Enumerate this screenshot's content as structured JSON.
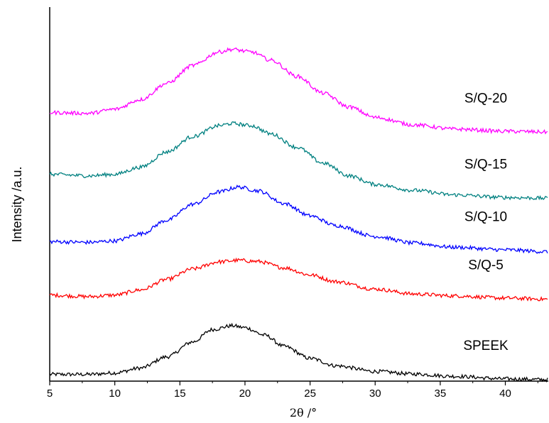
{
  "chart_data": {
    "type": "line",
    "title": "",
    "xlabel": "2θ /°",
    "ylabel": "Intensity /a.u.",
    "xlim": [
      5,
      43.3
    ],
    "x_ticks": [
      5,
      10,
      15,
      20,
      25,
      30,
      35,
      40
    ],
    "x_tick_labels": [
      "5",
      "10",
      "15",
      "20",
      "25",
      "30",
      "35",
      "40"
    ],
    "y_ticks_shown": false,
    "grid": false,
    "legend": "none (series labeled inline above each curve)",
    "series": [
      {
        "name": "SPEEK",
        "color": "#000000",
        "points": [
          [
            5,
            1.8
          ],
          [
            8,
            1.8
          ],
          [
            10,
            2.2
          ],
          [
            12,
            3.5
          ],
          [
            14,
            6.5
          ],
          [
            16,
            10.5
          ],
          [
            17.5,
            13.8
          ],
          [
            19,
            14.8
          ],
          [
            20,
            14.3
          ],
          [
            21.5,
            12.3
          ],
          [
            23,
            9.3
          ],
          [
            25,
            6.1
          ],
          [
            27,
            4.1
          ],
          [
            30,
            2.6
          ],
          [
            33,
            1.9
          ],
          [
            36,
            1.3
          ],
          [
            40,
            0.6
          ],
          [
            43.3,
            0.4
          ]
        ]
      },
      {
        "name": "S/Q-5",
        "color": "#ff0000",
        "points": [
          [
            5,
            23.0
          ],
          [
            8,
            22.6
          ],
          [
            10,
            23.0
          ],
          [
            12,
            24.4
          ],
          [
            14,
            27.2
          ],
          [
            16,
            30.0
          ],
          [
            18,
            31.9
          ],
          [
            19.5,
            32.3
          ],
          [
            21,
            32.0
          ],
          [
            23,
            30.3
          ],
          [
            25,
            28.4
          ],
          [
            27,
            26.6
          ],
          [
            30,
            24.6
          ],
          [
            33,
            23.3
          ],
          [
            36,
            22.8
          ],
          [
            40,
            22.2
          ],
          [
            43.3,
            21.9
          ]
        ]
      },
      {
        "name": "S/Q-10",
        "color": "#0000ff",
        "points": [
          [
            5,
            37.3
          ],
          [
            8,
            37.1
          ],
          [
            10,
            37.5
          ],
          [
            12,
            39.4
          ],
          [
            14,
            43.0
          ],
          [
            16,
            47.3
          ],
          [
            18,
            50.6
          ],
          [
            19.5,
            51.9
          ],
          [
            21,
            50.9
          ],
          [
            23,
            47.5
          ],
          [
            25,
            44.2
          ],
          [
            27,
            41.6
          ],
          [
            30,
            38.7
          ],
          [
            33,
            36.9
          ],
          [
            36,
            35.8
          ],
          [
            40,
            35.1
          ],
          [
            43.3,
            34.6
          ]
        ]
      },
      {
        "name": "S/Q-15",
        "color": "#008080",
        "points": [
          [
            5,
            55.3
          ],
          [
            8,
            54.9
          ],
          [
            10,
            55.3
          ],
          [
            12,
            57.2
          ],
          [
            14,
            61.3
          ],
          [
            16,
            65.4
          ],
          [
            18,
            68.3
          ],
          [
            19,
            68.9
          ],
          [
            20.5,
            68.3
          ],
          [
            22,
            66.1
          ],
          [
            24,
            62.5
          ],
          [
            26,
            58.3
          ],
          [
            28,
            54.9
          ],
          [
            30,
            52.6
          ],
          [
            33,
            51.0
          ],
          [
            36,
            49.8
          ],
          [
            40,
            49.1
          ],
          [
            43.3,
            48.9
          ]
        ]
      },
      {
        "name": "S/Q-20",
        "color": "#ff00ff",
        "points": [
          [
            5,
            71.8
          ],
          [
            8,
            71.6
          ],
          [
            10,
            72.7
          ],
          [
            12,
            75.3
          ],
          [
            14,
            79.6
          ],
          [
            16,
            84.4
          ],
          [
            18,
            88.0
          ],
          [
            19,
            88.7
          ],
          [
            20.5,
            88.0
          ],
          [
            22,
            85.8
          ],
          [
            24,
            81.5
          ],
          [
            26,
            77.0
          ],
          [
            28,
            73.3
          ],
          [
            30,
            70.5
          ],
          [
            33,
            68.5
          ],
          [
            36,
            67.4
          ],
          [
            40,
            66.8
          ],
          [
            43.3,
            66.6
          ]
        ]
      }
    ]
  }
}
